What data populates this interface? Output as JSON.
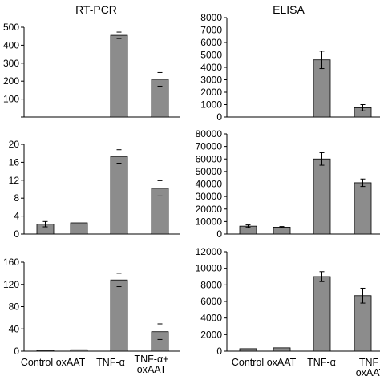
{
  "chart_data": [
    {
      "id": "rtpcr-top",
      "type": "bar",
      "title": "RT-PCR",
      "categories": [
        "Control",
        "oxAAT",
        "TNF-α",
        "TNF-α+ oxAAT"
      ],
      "values": [
        0,
        0,
        455,
        210
      ],
      "errors": [
        0,
        0,
        18,
        38
      ],
      "ylim": [
        0,
        500
      ],
      "yticks": [
        "0",
        "100",
        "200",
        "300",
        "400",
        "500"
      ],
      "tick_labels_shown": [
        "100",
        "200",
        "300",
        "400",
        "500"
      ]
    },
    {
      "id": "elisa-top",
      "type": "bar",
      "title": "ELISA",
      "categories": [
        "Control",
        "oxAAT",
        "TNF-α",
        "TNF-α+ oxAAT"
      ],
      "values": [
        0,
        0,
        4600,
        750
      ],
      "errors": [
        0,
        0,
        700,
        250
      ],
      "ylim": [
        0,
        8000
      ],
      "yticks": [
        "0",
        "1000",
        "2000",
        "3000",
        "4000",
        "5000",
        "6000",
        "7000",
        "8000"
      ]
    },
    {
      "id": "rtpcr-mid",
      "type": "bar",
      "title": "",
      "categories": [
        "Control",
        "oxAAT",
        "TNF-α",
        "TNF-α+ oxAAT"
      ],
      "values": [
        2.2,
        2.5,
        17.3,
        10.2
      ],
      "errors": [
        0.6,
        0,
        1.5,
        1.7
      ],
      "ylim": [
        0,
        20
      ],
      "yticks": [
        "0",
        "4",
        "8",
        "12",
        "16",
        "20"
      ]
    },
    {
      "id": "elisa-mid",
      "type": "bar",
      "title": "",
      "categories": [
        "Control",
        "oxAAT",
        "TNF-α",
        "TNF-α+ oxAAT"
      ],
      "values": [
        6300,
        5500,
        60000,
        41000
      ],
      "errors": [
        1000,
        500,
        5000,
        3000
      ],
      "ylim": [
        0,
        80000
      ],
      "yticks": [
        "0",
        "10000",
        "20000",
        "30000",
        "40000",
        "50000",
        "60000",
        "70000",
        "80000"
      ]
    },
    {
      "id": "rtpcr-bot",
      "type": "bar",
      "title": "",
      "categories": [
        "Control",
        "oxAAT",
        "TNF-α",
        "TNF-α+ oxAAT"
      ],
      "values": [
        1.5,
        2.5,
        128,
        35
      ],
      "errors": [
        0,
        0,
        12,
        14
      ],
      "ylim": [
        0,
        160
      ],
      "yticks": [
        "0",
        "40",
        "80",
        "120",
        "160"
      ]
    },
    {
      "id": "elisa-bot",
      "type": "bar",
      "title": "",
      "categories": [
        "Control",
        "oxAAT",
        "TNF-α",
        "TNF-α+ oxAAT"
      ],
      "values": [
        300,
        400,
        9000,
        6700
      ],
      "errors": [
        0,
        0,
        600,
        900
      ],
      "ylim": [
        0,
        12000
      ],
      "yticks": [
        "0",
        "2000",
        "4000",
        "6000",
        "8000",
        "10000",
        "12000"
      ]
    }
  ],
  "colors": {
    "bar_fill": "#8c8c8c",
    "bar_stroke": "#000000",
    "axis": "#000000"
  },
  "x_labels": {
    "left": [
      "Control",
      "oxAAT",
      "TNF-α",
      "TNF-α+",
      "oxAAT"
    ],
    "right": [
      "Control",
      "oxAAT",
      "TNF-α",
      "TNF"
    ]
  }
}
